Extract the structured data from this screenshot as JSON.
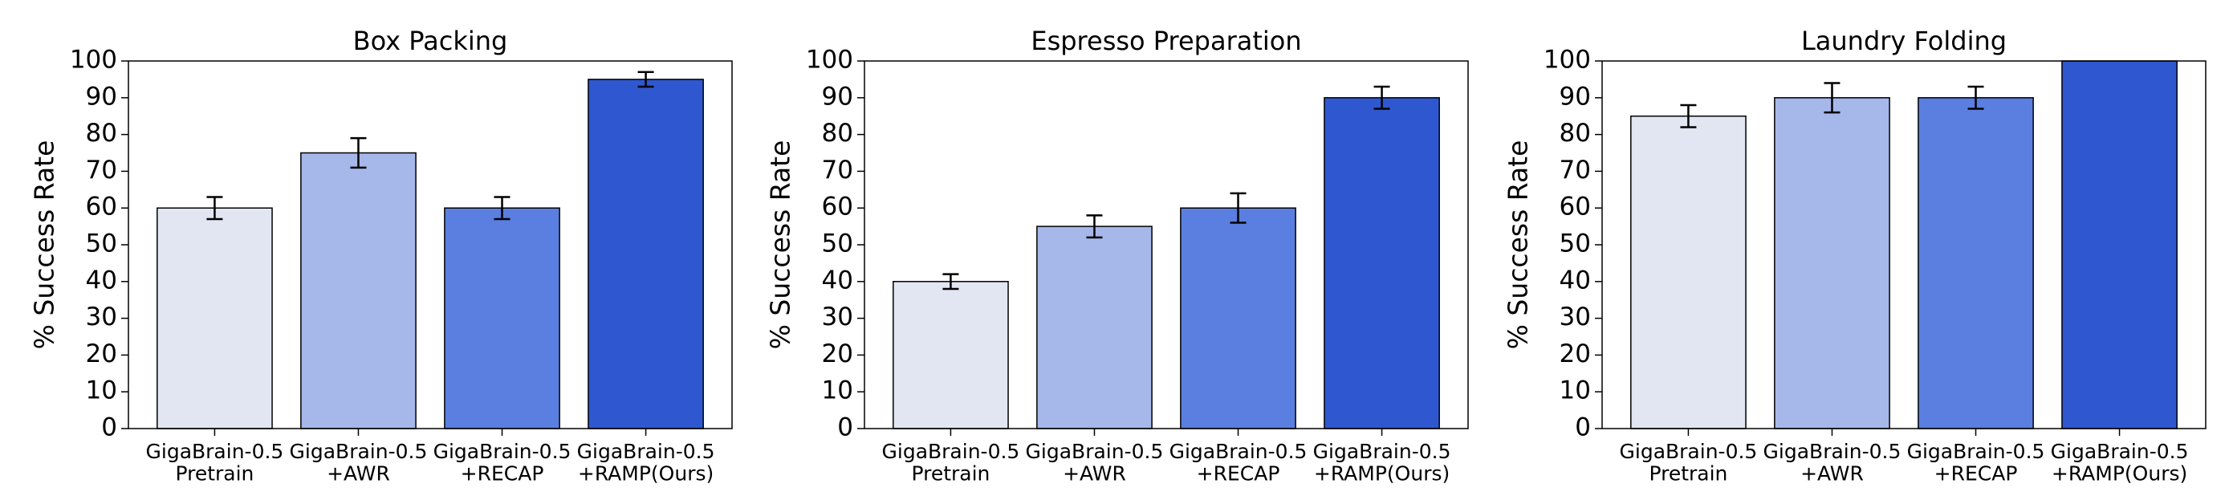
{
  "chart_data": [
    {
      "type": "bar",
      "title": "Box Packing",
      "ylabel": "% Success Rate",
      "categories": [
        "GigaBrain-0.5\nPretrain",
        "GigaBrain-0.5\n+AWR",
        "GigaBrain-0.5\n+RECAP",
        "GigaBrain-0.5\n+RAMP(Ours)"
      ],
      "values": [
        60,
        75,
        60,
        95
      ],
      "errors": [
        3,
        4,
        3,
        2
      ],
      "colors": [
        "#e1e6f2",
        "#a6b7ea",
        "#5a7fe0",
        "#2f58d0"
      ],
      "ylim": [
        0,
        100
      ],
      "yticks": [
        0,
        10,
        20,
        30,
        40,
        50,
        60,
        70,
        80,
        90,
        100
      ]
    },
    {
      "type": "bar",
      "title": "Espresso Preparation",
      "ylabel": "% Success Rate",
      "categories": [
        "GigaBrain-0.5\nPretrain",
        "GigaBrain-0.5\n+AWR",
        "GigaBrain-0.5\n+RECAP",
        "GigaBrain-0.5\n+RAMP(Ours)"
      ],
      "values": [
        40,
        55,
        60,
        90
      ],
      "errors": [
        2,
        3,
        4,
        3
      ],
      "colors": [
        "#e1e6f2",
        "#a6b7ea",
        "#5a7fe0",
        "#2f58d0"
      ],
      "ylim": [
        0,
        100
      ],
      "yticks": [
        0,
        10,
        20,
        30,
        40,
        50,
        60,
        70,
        80,
        90,
        100
      ]
    },
    {
      "type": "bar",
      "title": "Laundry Folding",
      "ylabel": "% Success Rate",
      "categories": [
        "GigaBrain-0.5\nPretrain",
        "GigaBrain-0.5\n+AWR",
        "GigaBrain-0.5\n+RECAP",
        "GigaBrain-0.5\n+RAMP(Ours)"
      ],
      "values": [
        85,
        90,
        90,
        100
      ],
      "errors": [
        3,
        4,
        3,
        null
      ],
      "colors": [
        "#e1e6f2",
        "#a6b7ea",
        "#5a7fe0",
        "#2f58d0"
      ],
      "ylim": [
        0,
        100
      ],
      "yticks": [
        0,
        10,
        20,
        30,
        40,
        50,
        60,
        70,
        80,
        90,
        100
      ]
    }
  ]
}
